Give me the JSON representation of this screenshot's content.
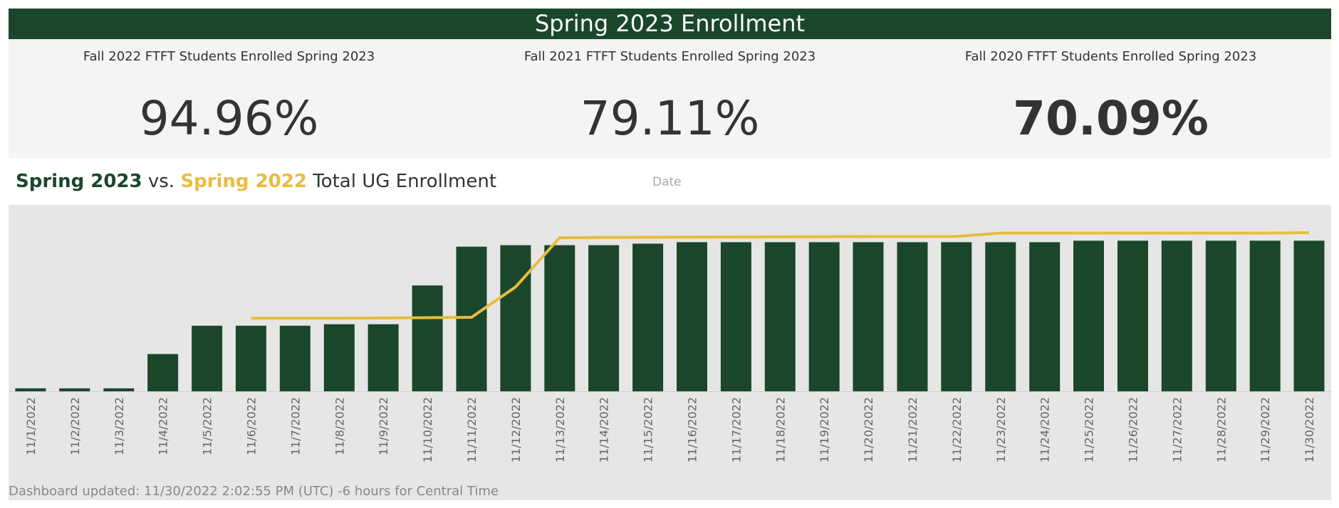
{
  "title": "Spring 2023 Enrollment",
  "kpis": [
    {
      "label": "Fall 2022 FTFT Students Enrolled Spring 2023",
      "value": "94.96%"
    },
    {
      "label": "Fall 2021 FTFT Students Enrolled Spring 2023",
      "value": "79.11%"
    },
    {
      "label": "Fall 2020 FTFT Students Enrolled Spring 2023",
      "value": "70.09%"
    }
  ],
  "chart_heading": {
    "part1": "Spring 2023",
    "part2": " vs. ",
    "part3": "Spring 2022",
    "part4": " Total UG Enrollment"
  },
  "date_label": "Date",
  "footer": "Dashboard updated: 11/30/2022 2:02:55 PM (UTC) -6 hours for Central Time",
  "colors": {
    "bar": "#1a472a",
    "line": "#e9bc3f",
    "header": "#1a472a"
  },
  "chart_data": {
    "type": "bar",
    "categories": [
      "11/1/2022",
      "11/2/2022",
      "11/3/2022",
      "11/4/2022",
      "11/5/2022",
      "11/6/2022",
      "11/7/2022",
      "11/8/2022",
      "11/9/2022",
      "11/10/2022",
      "11/11/2022",
      "11/12/2022",
      "11/13/2022",
      "11/14/2022",
      "11/15/2022",
      "11/16/2022",
      "11/17/2022",
      "11/18/2022",
      "11/19/2022",
      "11/20/2022",
      "11/21/2022",
      "11/22/2022",
      "11/23/2022",
      "11/24/2022",
      "11/25/2022",
      "11/26/2022",
      "11/27/2022",
      "11/28/2022",
      "11/29/2022",
      "11/30/2022"
    ],
    "series": [
      {
        "name": "Spring 2023",
        "kind": "bar",
        "values": [
          2,
          2,
          2,
          25,
          44,
          44,
          44,
          45,
          45,
          71,
          97,
          98,
          98,
          98,
          99,
          100,
          100,
          100,
          100,
          100,
          100,
          100,
          100,
          100,
          101,
          101,
          101,
          101,
          101,
          101
        ]
      },
      {
        "name": "Spring 2022",
        "kind": "line",
        "values": [
          null,
          null,
          null,
          null,
          null,
          49,
          49,
          49,
          49.2,
          49.4,
          49.6,
          70,
          103,
          103.2,
          103.3,
          103.4,
          103.5,
          103.6,
          103.7,
          103.8,
          103.8,
          103.9,
          106.1,
          106.1,
          106.1,
          106.1,
          106.1,
          106.1,
          106.1,
          106.4
        ]
      }
    ],
    "ylim": [
      0,
      125
    ],
    "grid": false,
    "legend": "none"
  }
}
